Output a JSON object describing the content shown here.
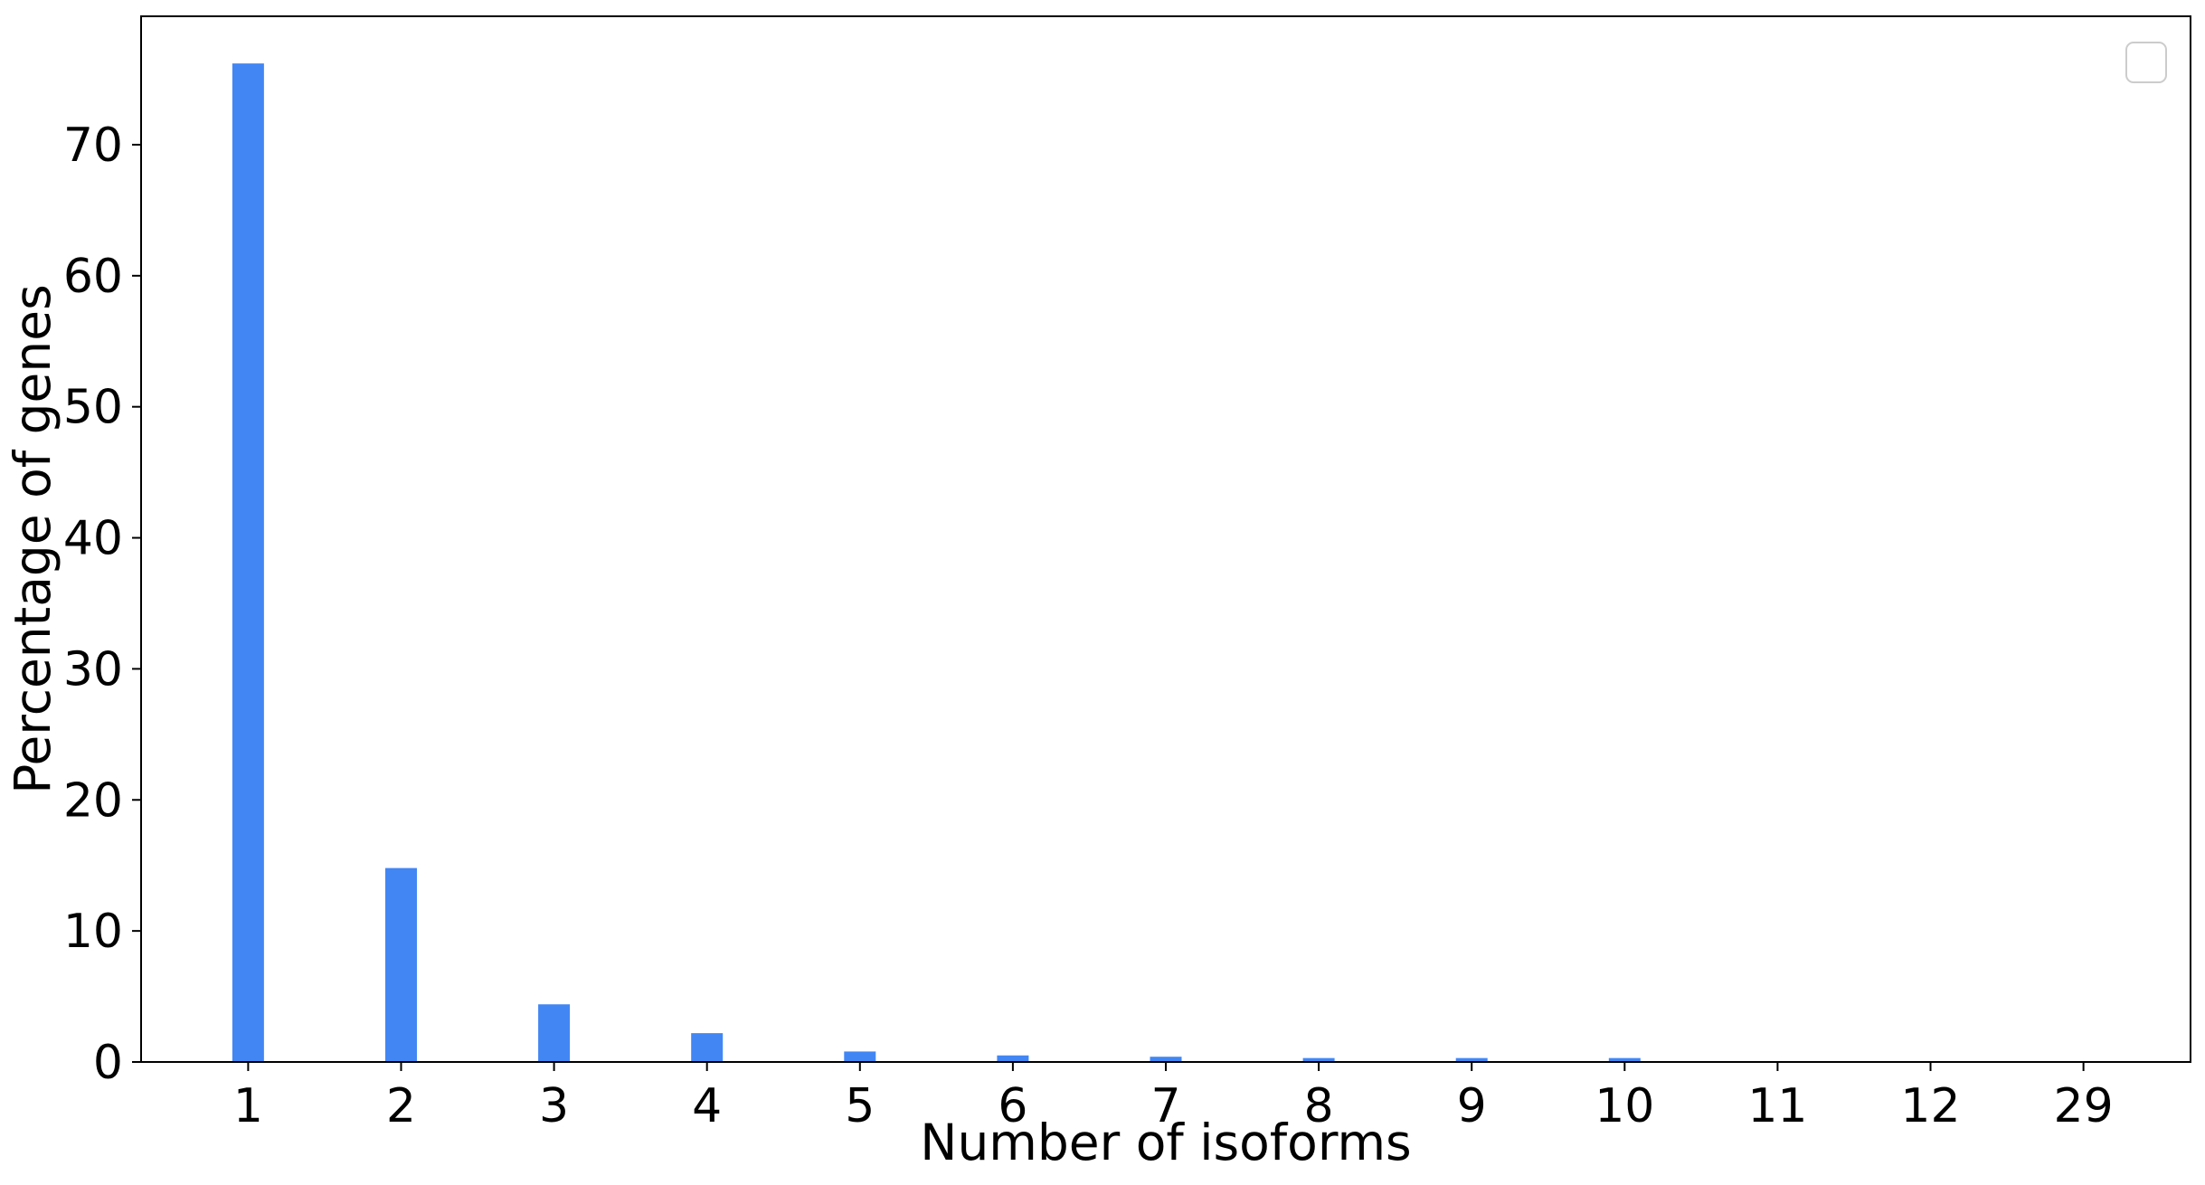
{
  "chart_data": {
    "type": "bar",
    "title": "",
    "xlabel": "Number of isoforms",
    "ylabel": "Percentage of genes",
    "categories": [
      "1",
      "2",
      "3",
      "4",
      "5",
      "6",
      "7",
      "8",
      "9",
      "10",
      "11",
      "12",
      "29"
    ],
    "values": [
      76.2,
      14.8,
      4.4,
      2.2,
      0.8,
      0.5,
      0.4,
      0.3,
      0.3,
      0.3,
      0.05,
      0.05,
      0.05
    ],
    "ylim": [
      0,
      80
    ],
    "yticks": [
      0,
      10,
      20,
      30,
      40,
      50,
      60,
      70
    ],
    "bar_color": "#4286f4",
    "grid": false,
    "legend": {
      "placement": "top-right",
      "entries": []
    }
  }
}
